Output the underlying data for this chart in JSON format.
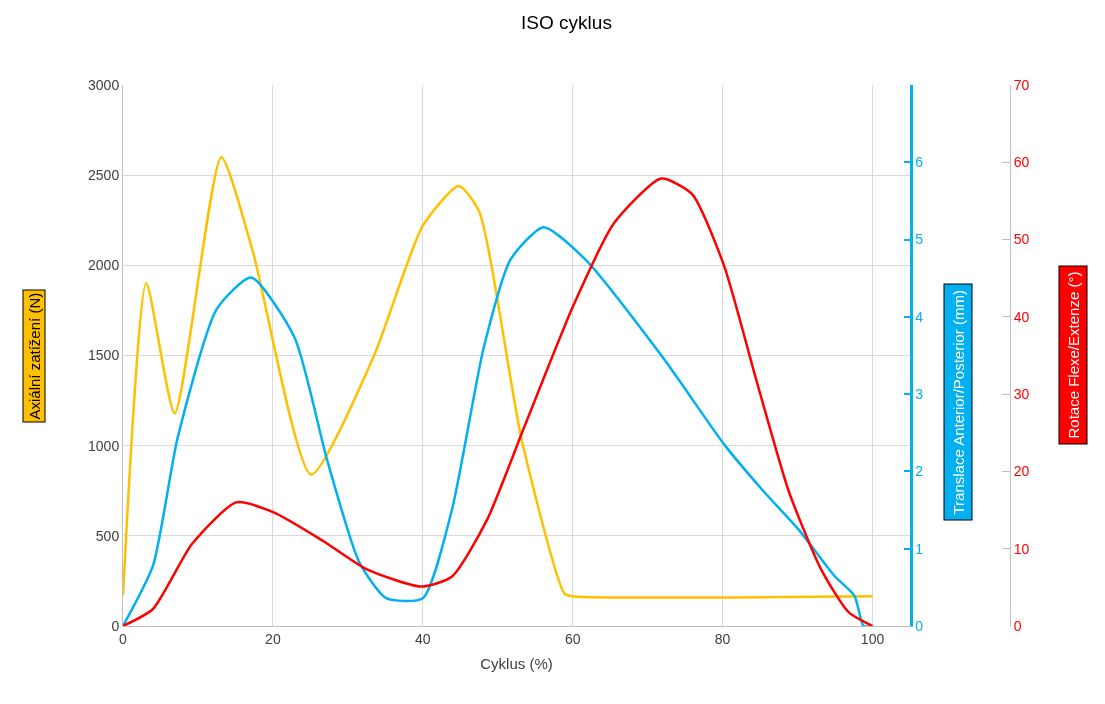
{
  "chart_data": {
    "type": "line",
    "title": "ISO cyklus",
    "xlabel": "Cyklus (%)",
    "ylabel": "Axiální zatížení (N)",
    "y2label": "Translace Anterior/Posterior (mm)",
    "y3label": "Rotace Flexe/Extenze (°)",
    "xlim": [
      0,
      105
    ],
    "xticks": [
      0,
      20,
      40,
      60,
      80,
      100
    ],
    "ylim": [
      0,
      3000
    ],
    "yticks": [
      0,
      500,
      1000,
      1500,
      2000,
      2500,
      3000
    ],
    "y2lim": [
      0,
      7
    ],
    "y2ticks": [
      0,
      1,
      2,
      3,
      4,
      5,
      6
    ],
    "y3lim": [
      0,
      70
    ],
    "y3ticks": [
      0,
      10,
      20,
      30,
      40,
      50,
      60,
      70
    ],
    "grid": true,
    "marker": "none",
    "line_style": "solid",
    "series": [
      {
        "color": "#ffc000",
        "axis": "y",
        "x": [
          0,
          3.1,
          6.9,
          13.1,
          17.3,
          25.1,
          33.4,
          40,
          44.8,
          47.5,
          53.2,
          58.9,
          60,
          100
        ],
        "values": [
          170,
          1900,
          1180,
          2600,
          2080,
          840,
          1490,
          2220,
          2440,
          2300,
          1030,
          180,
          165,
          165
        ]
      },
      {
        "color": "#00b0f0",
        "axis": "y2",
        "x": [
          0,
          4,
          7.3,
          12.5,
          17.1,
          22.9,
          27.2,
          31.5,
          35.1,
          40,
          43.9,
          48.1,
          51.7,
          56.1,
          61.7,
          72.2,
          80.2,
          85.4,
          90.2,
          94.9,
          97.6,
          98.8,
          100
        ],
        "values": [
          0,
          0.78,
          2.44,
          4.1,
          4.51,
          3.73,
          2.16,
          0.83,
          0.36,
          0.36,
          1.51,
          3.59,
          4.74,
          5.16,
          4.74,
          3.45,
          2.35,
          1.75,
          1.24,
          0.65,
          0.39,
          0,
          0
        ]
      },
      {
        "color": "#ff0000",
        "axis": "y3",
        "x": [
          0,
          4,
          9.2,
          15.1,
          20.1,
          26.7,
          32.4,
          39.8,
          43.9,
          48.6,
          53.6,
          60.1,
          65.5,
          71.8,
          75.9,
          80.2,
          84.5,
          88.8,
          93.1,
          96.8,
          100
        ],
        "values": [
          0,
          2.2,
          10.6,
          16,
          14.7,
          11,
          7.4,
          5.1,
          6.4,
          13.8,
          25.9,
          41.5,
          52.1,
          57.9,
          55.9,
          46.6,
          31.8,
          17.5,
          7.4,
          1.8,
          0
        ]
      }
    ]
  }
}
